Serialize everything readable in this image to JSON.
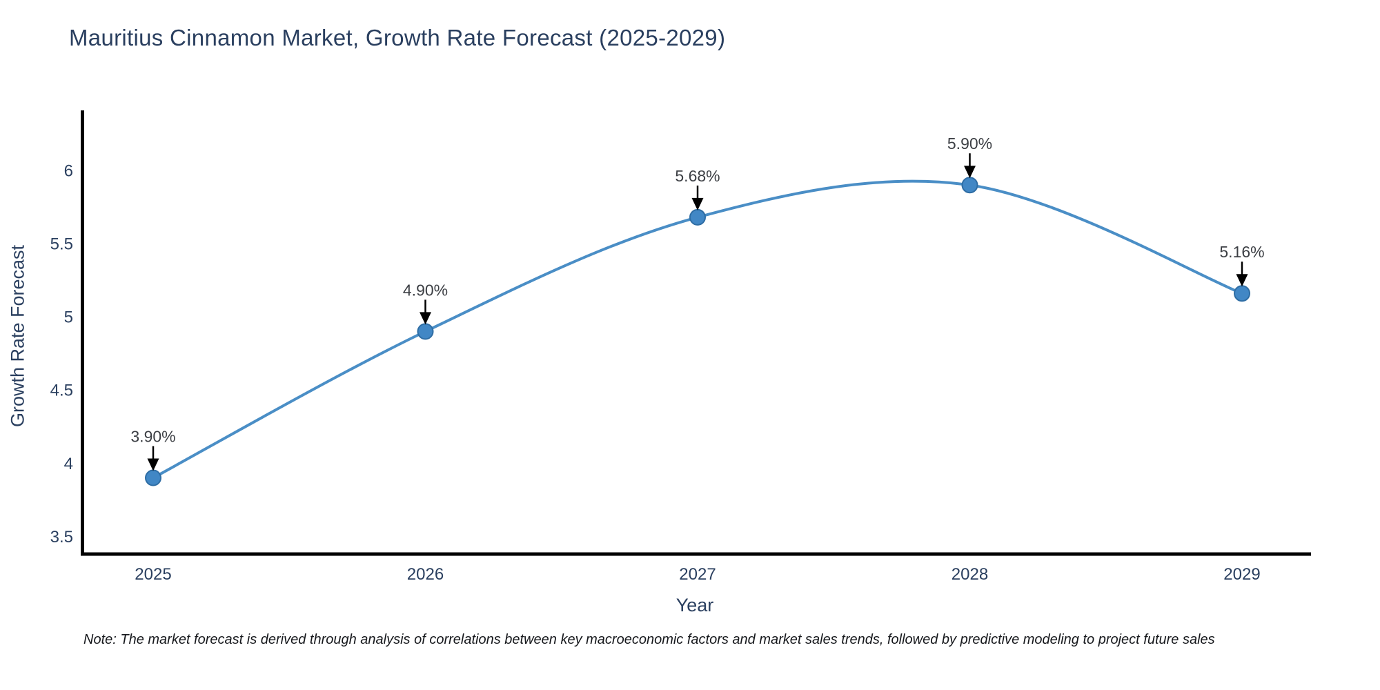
{
  "note": "Note: The market forecast is derived through analysis of correlations between key macroeconomic factors and market sales trends, followed by predictive modeling to project future sales",
  "chart_data": {
    "type": "line",
    "line_shape": "spline",
    "title": "Mauritius Cinnamon Market, Growth Rate Forecast (2025-2029)",
    "xlabel": "Year",
    "ylabel": "Growth Rate Forecast",
    "categories": [
      "2025",
      "2026",
      "2027",
      "2028",
      "2029"
    ],
    "series": [
      {
        "name": "Growth Rate Forecast",
        "values": [
          3.9,
          4.9,
          5.68,
          5.9,
          5.16
        ]
      }
    ],
    "point_labels": [
      "3.90%",
      "4.90%",
      "5.68%",
      "5.90%",
      "5.16%"
    ],
    "yticks": [
      3.5,
      4,
      4.5,
      5,
      5.5,
      6
    ],
    "ylim": [
      3.37,
      6.41
    ],
    "grid": false,
    "legend_position": "none",
    "marker_style": "circle-with-down-arrow-annotation",
    "colors": {
      "line": "#4a8ec6",
      "marker_fill": "#4187c5",
      "marker_edge": "#2e6da4",
      "axis": "#000000",
      "tick_text": "#2a3f5f",
      "title_text": "#2a3f5f",
      "annotation_text": "#3c3f44",
      "arrow": "#000000",
      "background": "#ffffff"
    }
  }
}
